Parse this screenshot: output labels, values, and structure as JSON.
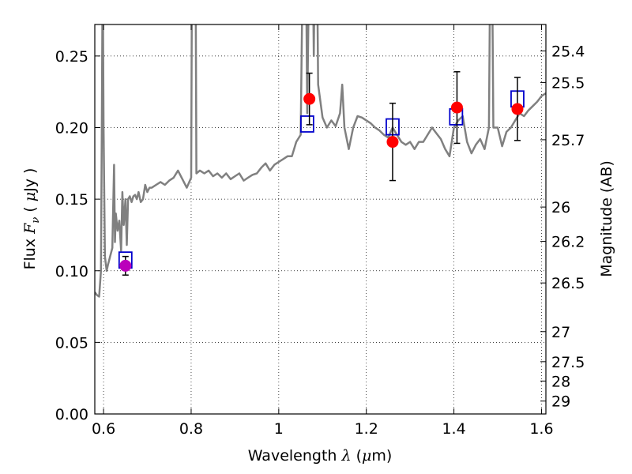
{
  "chart_data": {
    "type": "scatter",
    "title": "",
    "xlabel": {
      "prefix": "Wavelength  ",
      "symbol": "λ",
      "suffix": " (",
      "unit_mu": "μ",
      "unit_rest": "m)"
    },
    "ylabel": {
      "prefix": "Flux  ",
      "symbol": "F",
      "subscript": "ν",
      "suffix": "  ( ",
      "unit_mu": "μ",
      "unit_rest": "Jy )"
    },
    "ylabel_right": "Magnitude (AB)",
    "xlim": [
      0.58,
      1.61
    ],
    "ylim": [
      0.0,
      0.272
    ],
    "grid": true,
    "x_ticks": [
      0.6,
      0.8,
      1.0,
      1.2,
      1.4,
      1.6
    ],
    "x_tick_labels": [
      "0.6",
      "0.8",
      "1",
      "1.2",
      "1.4",
      "1.6"
    ],
    "y_ticks": [
      0.0,
      0.05,
      0.1,
      0.15,
      0.2,
      0.25
    ],
    "y_tick_labels": [
      "0.00",
      "0.05",
      "0.10",
      "0.15",
      "0.20",
      "0.25"
    ],
    "right_ticks": [
      {
        "label": "25.4",
        "flux": 0.2535
      },
      {
        "label": "25.5",
        "flux": 0.2315
      },
      {
        "label": "25.7",
        "flux": 0.1915
      },
      {
        "label": "26",
        "flux": 0.1445
      },
      {
        "label": "26.2",
        "flux": 0.1205
      },
      {
        "label": "26.5",
        "flux": 0.0915
      },
      {
        "label": "27",
        "flux": 0.0575
      },
      {
        "label": "27.5",
        "flux": 0.0365
      },
      {
        "label": "28",
        "flux": 0.023
      },
      {
        "label": "29",
        "flux": 0.009
      }
    ],
    "series": [
      {
        "kind": "line",
        "color": "#808080",
        "x": [
          0.58,
          0.585,
          0.59,
          0.594,
          0.596,
          0.598,
          0.6,
          0.603,
          0.607,
          0.61,
          0.615,
          0.62,
          0.624,
          0.626,
          0.628,
          0.632,
          0.636,
          0.64,
          0.643,
          0.646,
          0.65,
          0.653,
          0.656,
          0.66,
          0.664,
          0.668,
          0.672,
          0.676,
          0.68,
          0.685,
          0.69,
          0.695,
          0.7,
          0.705,
          0.71,
          0.72,
          0.73,
          0.74,
          0.75,
          0.76,
          0.77,
          0.78,
          0.79,
          0.8,
          0.803,
          0.806,
          0.809,
          0.812,
          0.82,
          0.83,
          0.84,
          0.85,
          0.86,
          0.87,
          0.88,
          0.89,
          0.9,
          0.91,
          0.92,
          0.93,
          0.94,
          0.95,
          0.96,
          0.97,
          0.98,
          0.99,
          1.0,
          1.01,
          1.02,
          1.03,
          1.04,
          1.05,
          1.055,
          1.06,
          1.065,
          1.07,
          1.075,
          1.08,
          1.085,
          1.09,
          1.1,
          1.11,
          1.12,
          1.13,
          1.14,
          1.145,
          1.15,
          1.16,
          1.17,
          1.18,
          1.19,
          1.2,
          1.21,
          1.22,
          1.23,
          1.24,
          1.25,
          1.26,
          1.27,
          1.28,
          1.29,
          1.3,
          1.31,
          1.32,
          1.33,
          1.34,
          1.35,
          1.36,
          1.37,
          1.38,
          1.39,
          1.4,
          1.41,
          1.42,
          1.43,
          1.44,
          1.45,
          1.46,
          1.47,
          1.48,
          1.485,
          1.49,
          1.5,
          1.51,
          1.52,
          1.53,
          1.54,
          1.55,
          1.56,
          1.57,
          1.58,
          1.59,
          1.6,
          1.61
        ],
        "y": [
          0.085,
          0.083,
          0.082,
          0.1,
          0.2,
          0.32,
          0.2,
          0.11,
          0.1,
          0.104,
          0.11,
          0.116,
          0.174,
          0.12,
          0.14,
          0.128,
          0.135,
          0.114,
          0.155,
          0.132,
          0.15,
          0.118,
          0.15,
          0.152,
          0.148,
          0.152,
          0.153,
          0.15,
          0.155,
          0.148,
          0.15,
          0.16,
          0.155,
          0.158,
          0.158,
          0.16,
          0.162,
          0.16,
          0.163,
          0.165,
          0.17,
          0.164,
          0.158,
          0.165,
          0.4,
          0.4,
          0.4,
          0.168,
          0.17,
          0.168,
          0.17,
          0.166,
          0.168,
          0.165,
          0.168,
          0.164,
          0.166,
          0.168,
          0.163,
          0.165,
          0.167,
          0.168,
          0.172,
          0.175,
          0.17,
          0.174,
          0.176,
          0.178,
          0.18,
          0.18,
          0.19,
          0.195,
          0.32,
          0.4,
          0.21,
          0.33,
          0.4,
          0.25,
          0.4,
          0.23,
          0.207,
          0.2,
          0.205,
          0.201,
          0.21,
          0.23,
          0.2,
          0.185,
          0.2,
          0.208,
          0.207,
          0.205,
          0.203,
          0.2,
          0.198,
          0.195,
          0.193,
          0.2,
          0.195,
          0.19,
          0.188,
          0.19,
          0.185,
          0.19,
          0.19,
          0.195,
          0.2,
          0.196,
          0.192,
          0.185,
          0.18,
          0.2,
          0.205,
          0.208,
          0.19,
          0.182,
          0.188,
          0.192,
          0.185,
          0.2,
          0.4,
          0.2,
          0.2,
          0.187,
          0.197,
          0.2,
          0.205,
          0.21,
          0.208,
          0.212,
          0.215,
          0.218,
          0.222,
          0.224
        ]
      },
      {
        "kind": "model-squares",
        "color": "#0000cc",
        "points": [
          {
            "x": 0.65,
            "y": 0.1075
          },
          {
            "x": 1.065,
            "y": 0.2025
          },
          {
            "x": 1.26,
            "y": 0.2005
          },
          {
            "x": 1.405,
            "y": 0.2075
          },
          {
            "x": 1.545,
            "y": 0.22
          }
        ]
      },
      {
        "kind": "observed-points",
        "color": "#ff0000",
        "points": [
          {
            "x": 0.65,
            "y": 0.1035,
            "err": 0.0065,
            "color": "#bb00bb"
          },
          {
            "x": 1.07,
            "y": 0.22,
            "err": 0.018
          },
          {
            "x": 1.26,
            "y": 0.19,
            "err": 0.027
          },
          {
            "x": 1.407,
            "y": 0.214,
            "err": 0.025
          },
          {
            "x": 1.545,
            "y": 0.213,
            "err": 0.022
          }
        ]
      }
    ]
  }
}
